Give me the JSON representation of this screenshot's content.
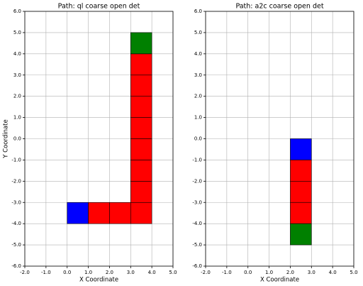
{
  "chart_data": [
    {
      "type": "grid-cells",
      "title": "Path: ql coarse open det",
      "xlabel": "X Coordinate",
      "ylabel": "Y Coordinate",
      "xlim": [
        -2,
        5
      ],
      "ylim": [
        -6,
        6
      ],
      "grid": true,
      "xticks": [
        {
          "value": -2,
          "label": "-2.0"
        },
        {
          "value": -1,
          "label": "-1.0"
        },
        {
          "value": 0,
          "label": "0.0"
        },
        {
          "value": 1,
          "label": "1.0"
        },
        {
          "value": 2,
          "label": "2.0"
        },
        {
          "value": 3,
          "label": "3.0"
        },
        {
          "value": 4,
          "label": "4.0"
        },
        {
          "value": 5,
          "label": "5.0"
        }
      ],
      "yticks": [
        {
          "value": -6,
          "label": "-6.0"
        },
        {
          "value": -5,
          "label": "-5.0"
        },
        {
          "value": -4,
          "label": "-4.0"
        },
        {
          "value": -3,
          "label": "-3.0"
        },
        {
          "value": -2,
          "label": "-2.0"
        },
        {
          "value": -1,
          "label": "-1.0"
        },
        {
          "value": 0,
          "label": "0.0"
        },
        {
          "value": 1,
          "label": "1.0"
        },
        {
          "value": 2,
          "label": "2.0"
        },
        {
          "value": 3,
          "label": "3.0"
        },
        {
          "value": 4,
          "label": "4.0"
        },
        {
          "value": 5,
          "label": "5.0"
        },
        {
          "value": 6,
          "label": "6.0"
        }
      ],
      "cells": [
        {
          "x": 0,
          "y": -4,
          "color": "#0000ff"
        },
        {
          "x": 1,
          "y": -4,
          "color": "#ff0000"
        },
        {
          "x": 2,
          "y": -4,
          "color": "#ff0000"
        },
        {
          "x": 3,
          "y": -4,
          "color": "#ff0000"
        },
        {
          "x": 3,
          "y": -3,
          "color": "#ff0000"
        },
        {
          "x": 3,
          "y": -2,
          "color": "#ff0000"
        },
        {
          "x": 3,
          "y": -1,
          "color": "#ff0000"
        },
        {
          "x": 3,
          "y": 0,
          "color": "#ff0000"
        },
        {
          "x": 3,
          "y": 1,
          "color": "#ff0000"
        },
        {
          "x": 3,
          "y": 2,
          "color": "#ff0000"
        },
        {
          "x": 3,
          "y": 3,
          "color": "#ff0000"
        },
        {
          "x": 3,
          "y": 4,
          "color": "#008000"
        }
      ]
    },
    {
      "type": "grid-cells",
      "title": "Path: a2c coarse open det",
      "xlabel": "X Coordinate",
      "xlim": [
        -2,
        5
      ],
      "ylim": [
        -6,
        6
      ],
      "grid": true,
      "xticks": [
        {
          "value": -2,
          "label": "-2.0"
        },
        {
          "value": -1,
          "label": "-1.0"
        },
        {
          "value": 0,
          "label": "0.0"
        },
        {
          "value": 1,
          "label": "1.0"
        },
        {
          "value": 2,
          "label": "2.0"
        },
        {
          "value": 3,
          "label": "3.0"
        },
        {
          "value": 4,
          "label": "4.0"
        },
        {
          "value": 5,
          "label": "5.0"
        }
      ],
      "yticks": [
        {
          "value": -6,
          "label": "-6.0"
        },
        {
          "value": -5,
          "label": "-5.0"
        },
        {
          "value": -4,
          "label": "-4.0"
        },
        {
          "value": -3,
          "label": "-3.0"
        },
        {
          "value": -2,
          "label": "-2.0"
        },
        {
          "value": -1,
          "label": "-1.0"
        },
        {
          "value": 0,
          "label": "0.0"
        },
        {
          "value": 1,
          "label": "1.0"
        },
        {
          "value": 2,
          "label": "2.0"
        },
        {
          "value": 3,
          "label": "3.0"
        },
        {
          "value": 4,
          "label": "4.0"
        },
        {
          "value": 5,
          "label": "5.0"
        },
        {
          "value": 6,
          "label": "6.0"
        }
      ],
      "cells": [
        {
          "x": 2,
          "y": -1,
          "color": "#0000ff"
        },
        {
          "x": 2,
          "y": -2,
          "color": "#ff0000"
        },
        {
          "x": 2,
          "y": -3,
          "color": "#ff0000"
        },
        {
          "x": 2,
          "y": -4,
          "color": "#ff0000"
        },
        {
          "x": 2,
          "y": -5,
          "color": "#008000"
        }
      ]
    }
  ]
}
